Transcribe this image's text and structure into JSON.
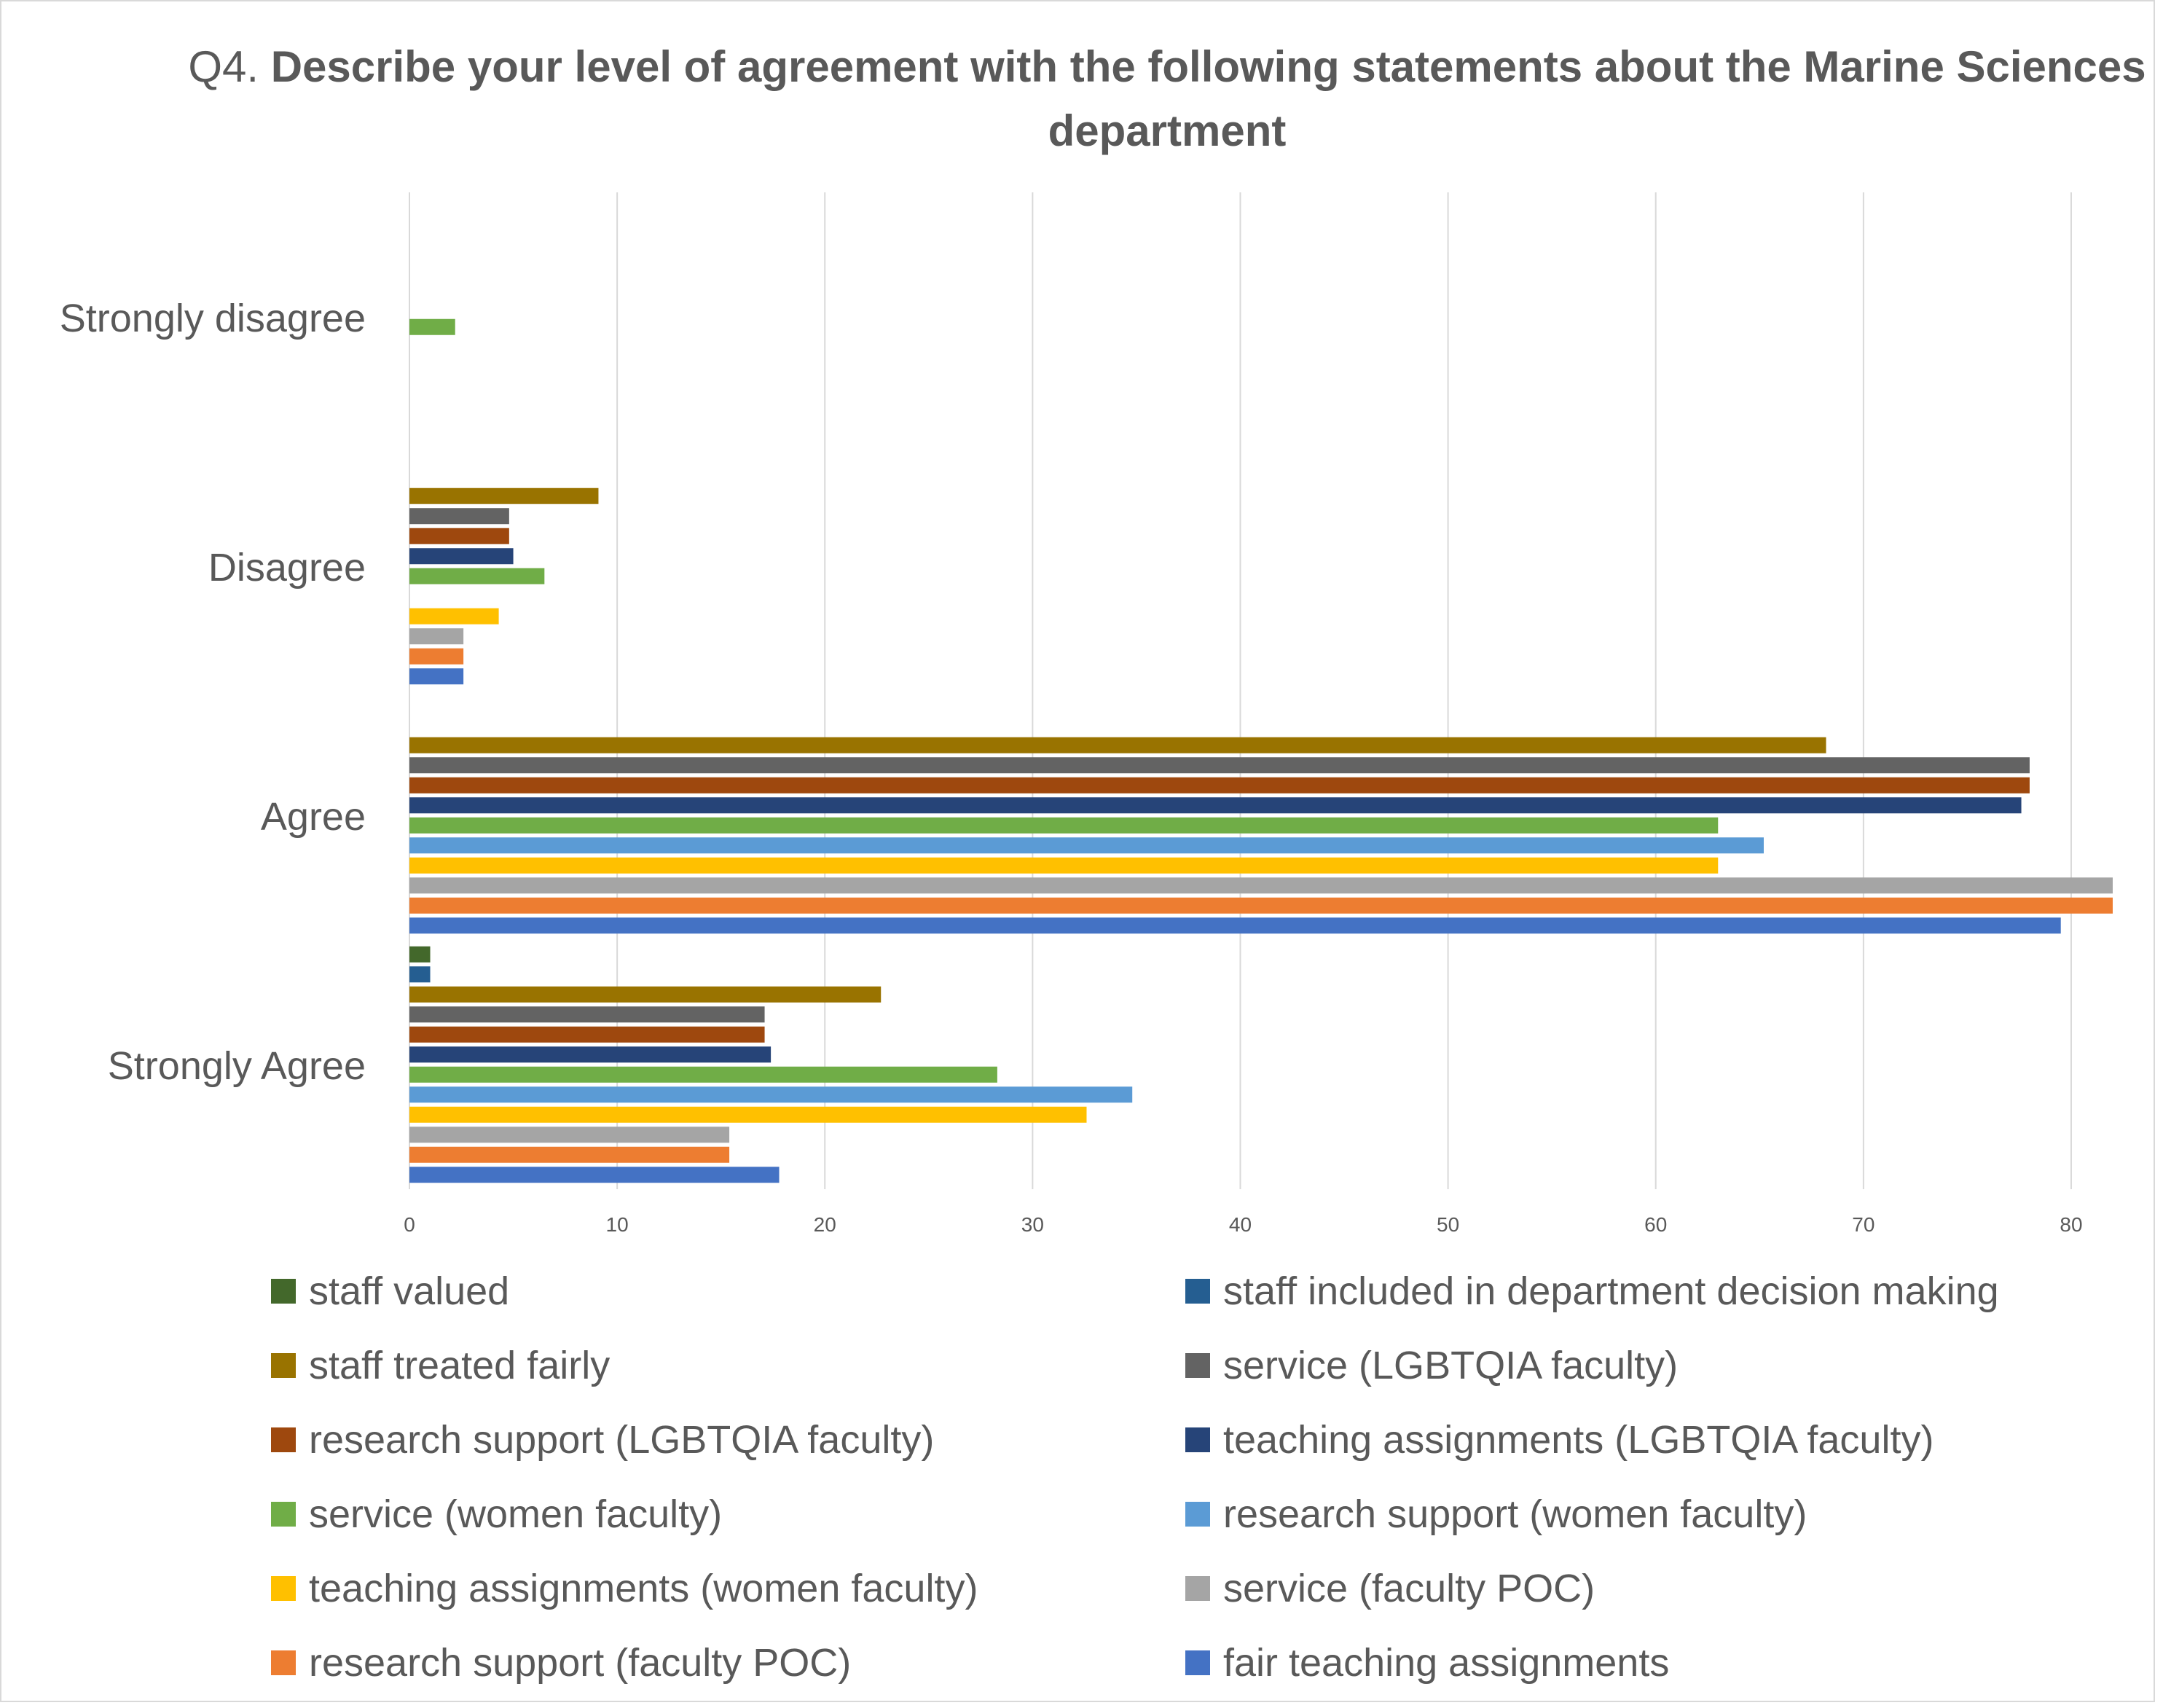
{
  "chart_data": {
    "type": "bar",
    "orientation": "horizontal",
    "title_prefix": "Q4.",
    "title": "Describe your level of agreement with the following statements about the Marine Sciences department",
    "xlabel": "",
    "ylabel": "",
    "xlim": [
      0,
      82
    ],
    "x_ticks": [
      0,
      10,
      20,
      30,
      40,
      50,
      60,
      70,
      80
    ],
    "grid": true,
    "legend_position": "bottom",
    "categories": [
      "Strongly Agree",
      "Agree",
      "Disagree",
      "Strongly disagree"
    ],
    "series": [
      {
        "name": "fair teaching assignments",
        "color": "#4472C4",
        "values": [
          17.8,
          79.5,
          2.6,
          0
        ]
      },
      {
        "name": "research support (faculty POC)",
        "color": "#ED7D31",
        "values": [
          15.4,
          82,
          2.6,
          0
        ]
      },
      {
        "name": "service (faculty POC)",
        "color": "#A5A5A5",
        "values": [
          15.4,
          82,
          2.6,
          0
        ]
      },
      {
        "name": "teaching assignments (women faculty)",
        "color": "#FFC000",
        "values": [
          32.6,
          63,
          4.3,
          0
        ]
      },
      {
        "name": "research support (women faculty)",
        "color": "#5B9BD5",
        "values": [
          34.8,
          65.2,
          0,
          0
        ]
      },
      {
        "name": "service (women faculty)",
        "color": "#70AD47",
        "values": [
          28.3,
          63,
          6.5,
          2.2
        ]
      },
      {
        "name": "teaching assignments (LGBTQIA faculty)",
        "color": "#264478",
        "values": [
          17.4,
          77.6,
          5,
          0
        ]
      },
      {
        "name": "research support (LGBTQIA faculty)",
        "color": "#9E480E",
        "values": [
          17.1,
          78,
          4.8,
          0
        ]
      },
      {
        "name": "service (LGBTQIA faculty)",
        "color": "#636363",
        "values": [
          17.1,
          78,
          4.8,
          0
        ]
      },
      {
        "name": "staff treated fairly",
        "color": "#997300",
        "values": [
          22.7,
          68.2,
          9.1,
          0
        ]
      },
      {
        "name": "staff included in department decision making",
        "color": "#255E91",
        "values": [
          1,
          0,
          0,
          0
        ]
      },
      {
        "name": "staff valued",
        "color": "#43682B",
        "values": [
          1,
          0,
          0,
          0
        ]
      }
    ],
    "legend_order": [
      "staff valued",
      "staff included in department decision making",
      "staff treated fairly",
      "service (LGBTQIA faculty)",
      "research support (LGBTQIA faculty)",
      "teaching assignments (LGBTQIA faculty)",
      "service (women faculty)",
      "research support (women faculty)",
      "teaching assignments (women faculty)",
      "service (faculty POC)",
      "research support (faculty POC)",
      "fair teaching assignments"
    ]
  }
}
